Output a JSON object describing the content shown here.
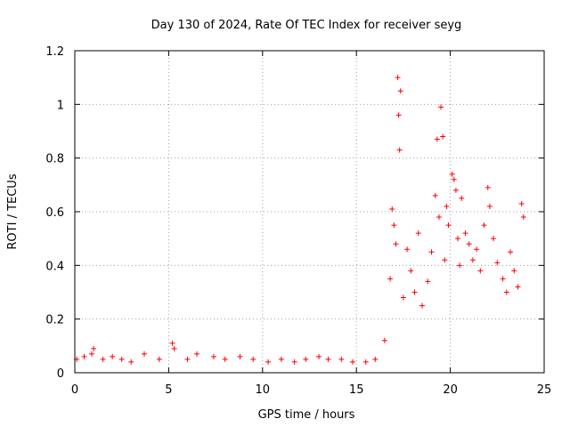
{
  "chart_data": {
    "type": "scatter",
    "title": "Day 130 of 2024, Rate Of TEC Index for receiver seyg",
    "xlabel": "GPS time / hours",
    "ylabel": "ROTI / TECUs",
    "xlim": [
      0,
      25
    ],
    "ylim": [
      0,
      1.2
    ],
    "xticks": [
      "0",
      "5",
      "10",
      "15",
      "20",
      "25"
    ],
    "yticks": [
      "0",
      "0.2",
      "0.4",
      "0.6",
      "0.8",
      "1",
      "1.2"
    ],
    "grid": true,
    "marker": "+",
    "color": "#ff0000",
    "series": [
      {
        "x": [
          0.1,
          0.5,
          0.9,
          1.0,
          1.5,
          2.0,
          2.5,
          3.0,
          3.7,
          4.5,
          5.2,
          5.3,
          6.0,
          6.5,
          7.4,
          8.0,
          8.8,
          9.5,
          10.3,
          11.0,
          11.7,
          12.3,
          13.0,
          13.5,
          14.2,
          14.8,
          15.5,
          16.0,
          16.5,
          16.8,
          16.9,
          17.0,
          17.1,
          17.2,
          17.25,
          17.3,
          17.35,
          17.5,
          17.7,
          17.9,
          18.1,
          18.3,
          18.5,
          18.8,
          19.0,
          19.2,
          19.3,
          19.4,
          19.5,
          19.6,
          19.7,
          19.8,
          19.9,
          20.1,
          20.2,
          20.3,
          20.4,
          20.5,
          20.6,
          20.8,
          21.0,
          21.2,
          21.4,
          21.6,
          21.8,
          22.0,
          22.1,
          22.3,
          22.5,
          22.8,
          23.0,
          23.2,
          23.4,
          23.6,
          23.8,
          23.9
        ],
        "y": [
          0.05,
          0.06,
          0.07,
          0.09,
          0.05,
          0.06,
          0.05,
          0.04,
          0.07,
          0.05,
          0.11,
          0.09,
          0.05,
          0.07,
          0.06,
          0.05,
          0.06,
          0.05,
          0.04,
          0.05,
          0.04,
          0.05,
          0.06,
          0.05,
          0.05,
          0.04,
          0.04,
          0.05,
          0.12,
          0.35,
          0.61,
          0.55,
          0.48,
          1.1,
          0.96,
          0.83,
          1.05,
          0.28,
          0.46,
          0.38,
          0.3,
          0.52,
          0.25,
          0.34,
          0.45,
          0.66,
          0.87,
          0.58,
          0.99,
          0.88,
          0.42,
          0.62,
          0.55,
          0.74,
          0.72,
          0.68,
          0.5,
          0.4,
          0.65,
          0.52,
          0.48,
          0.42,
          0.46,
          0.38,
          0.55,
          0.69,
          0.62,
          0.5,
          0.41,
          0.35,
          0.3,
          0.45,
          0.38,
          0.32,
          0.63,
          0.58
        ]
      }
    ]
  }
}
